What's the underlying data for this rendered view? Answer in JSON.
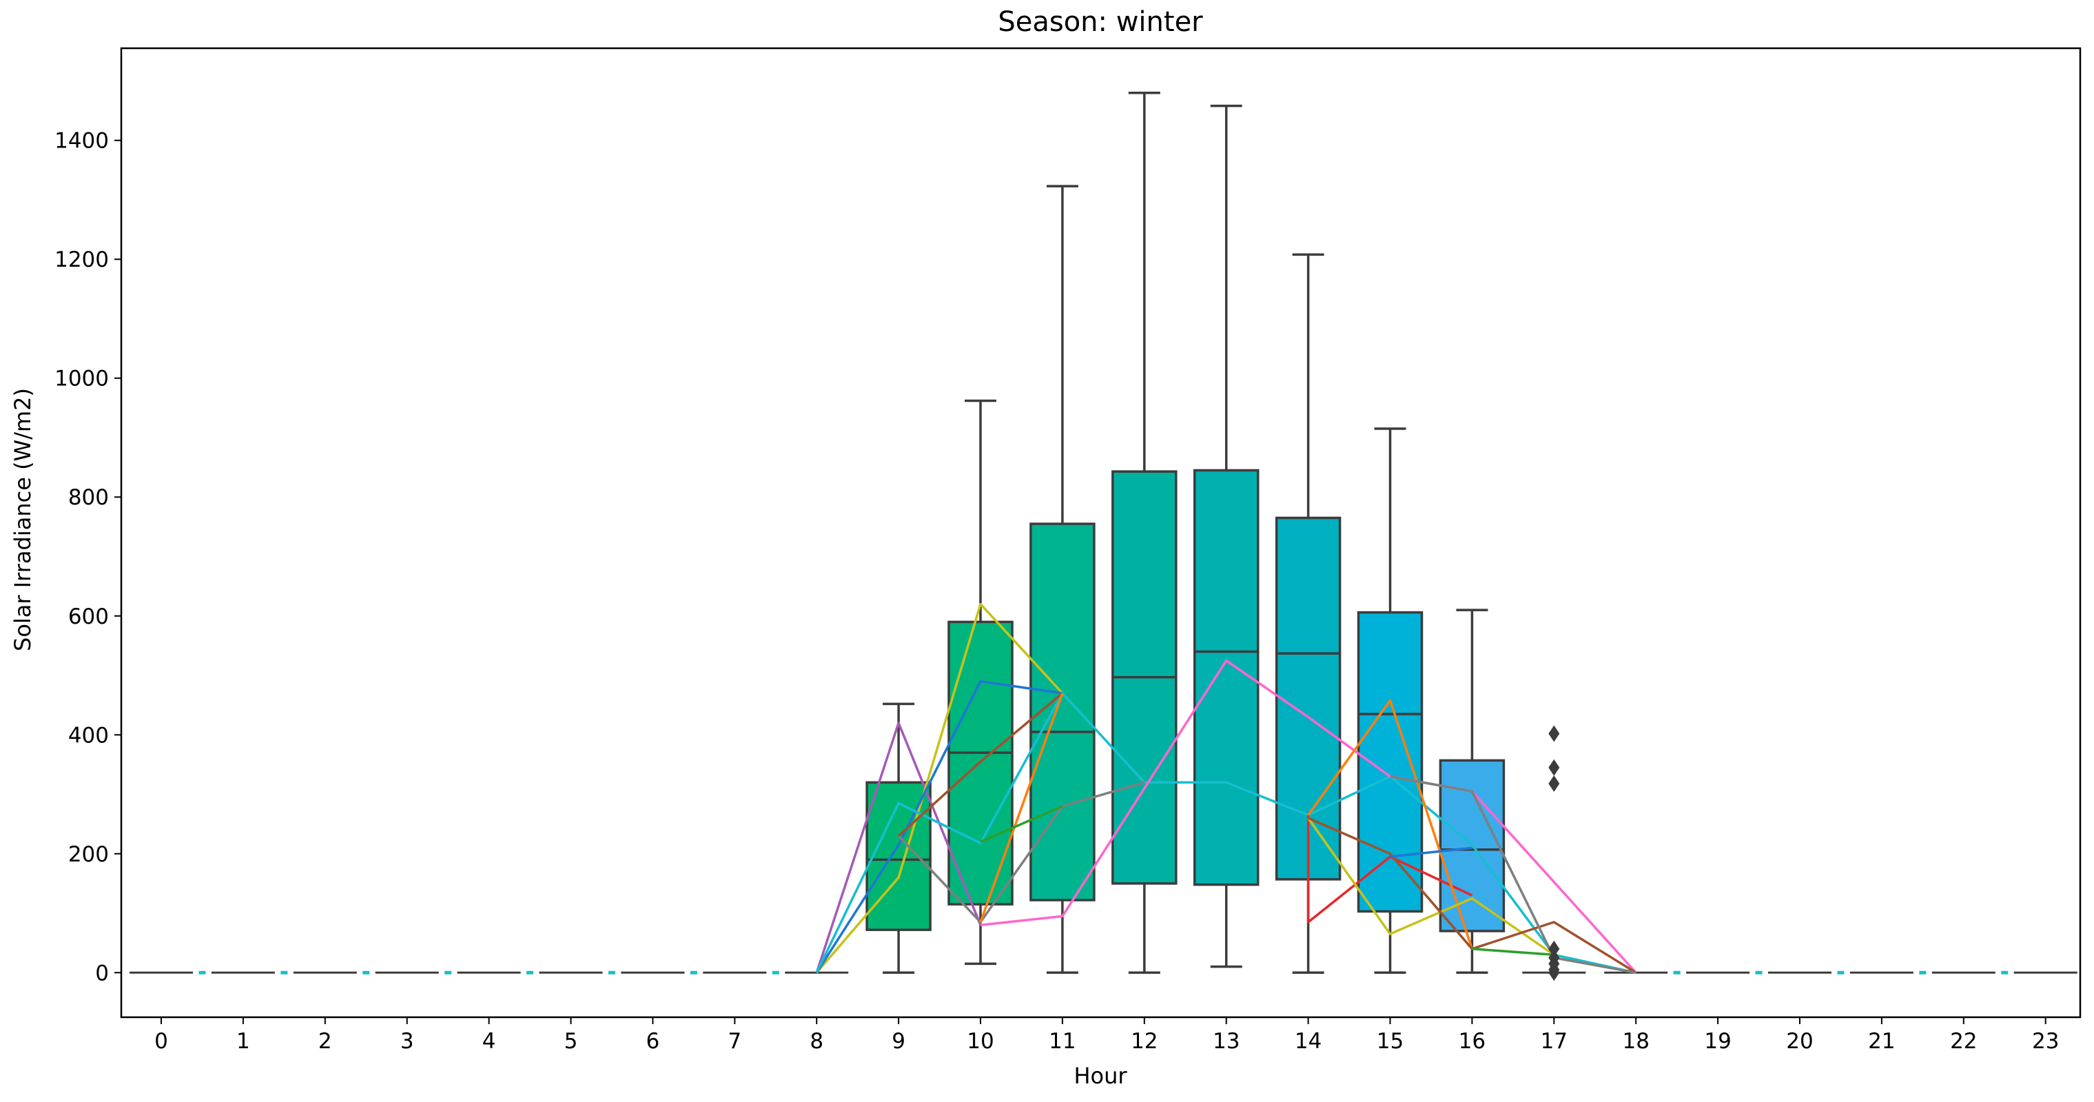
{
  "chart_data": {
    "type": "box",
    "title": "Season: winter",
    "xlabel": "Hour",
    "ylabel": "Solar Irradiance (W/m2)",
    "ylim": [
      -75,
      1555
    ],
    "yticks": [
      0,
      200,
      400,
      600,
      800,
      1000,
      1200,
      1400
    ],
    "ytick_labels": [
      "0",
      "200",
      "400",
      "600",
      "800",
      "1000",
      "1200",
      "1400"
    ],
    "categories": [
      "0",
      "1",
      "2",
      "3",
      "4",
      "5",
      "6",
      "7",
      "8",
      "9",
      "10",
      "11",
      "12",
      "13",
      "14",
      "15",
      "16",
      "17",
      "18",
      "19",
      "20",
      "21",
      "22",
      "23"
    ],
    "boxes": [
      {
        "hour": 9,
        "whislo": 0,
        "q1": 72,
        "med": 190,
        "q3": 320,
        "whishi": 452,
        "color": "#00b56f"
      },
      {
        "hour": 10,
        "whislo": 15,
        "q1": 115,
        "med": 370,
        "q3": 590,
        "whishi": 962,
        "color": "#00b57c"
      },
      {
        "hour": 11,
        "whislo": 0,
        "q1": 122,
        "med": 405,
        "q3": 755,
        "whishi": 1323,
        "color": "#00b48f"
      },
      {
        "hour": 12,
        "whislo": 0,
        "q1": 150,
        "med": 497,
        "q3": 843,
        "whishi": 1480,
        "color": "#00b1a2"
      },
      {
        "hour": 13,
        "whislo": 10,
        "q1": 148,
        "med": 540,
        "q3": 845,
        "whishi": 1458,
        "color": "#00b1b0"
      },
      {
        "hour": 14,
        "whislo": 0,
        "q1": 157,
        "med": 537,
        "q3": 765,
        "whishi": 1208,
        "color": "#00b0c0"
      },
      {
        "hour": 15,
        "whislo": 0,
        "q1": 103,
        "med": 435,
        "q3": 606,
        "whishi": 915,
        "color": "#00b1d8"
      },
      {
        "hour": 16,
        "whislo": 0,
        "q1": 70,
        "med": 207,
        "q3": 357,
        "whishi": 610,
        "color": "#3aacea"
      }
    ],
    "zero_hours": [
      0,
      1,
      2,
      3,
      4,
      5,
      6,
      7,
      8,
      17,
      18,
      19,
      20,
      21,
      22,
      23
    ],
    "outliers": [
      {
        "hour": 17,
        "values": [
          402,
          345,
          318,
          40,
          25,
          15,
          5,
          0
        ]
      }
    ],
    "series": [
      {
        "name": "day-purple",
        "color": "#a55ab8",
        "points": [
          [
            8,
            0
          ],
          [
            9,
            420
          ],
          [
            10,
            80
          ]
        ]
      },
      {
        "name": "day-yellow",
        "color": "#c8c11a",
        "points": [
          [
            8,
            0
          ],
          [
            9,
            160
          ],
          [
            10,
            620
          ],
          [
            11,
            470
          ]
        ]
      },
      {
        "name": "day-blue",
        "color": "#1f77d4",
        "points": [
          [
            8,
            0
          ],
          [
            9,
            215
          ],
          [
            10,
            490
          ],
          [
            11,
            470
          ]
        ]
      },
      {
        "name": "day-cyan",
        "color": "#17becf",
        "points": [
          [
            8,
            0
          ],
          [
            9,
            285
          ],
          [
            10,
            218
          ],
          [
            11,
            470
          ],
          [
            12,
            320
          ],
          [
            13,
            320
          ],
          [
            14,
            265
          ],
          [
            15,
            330
          ],
          [
            16,
            215
          ],
          [
            17,
            30
          ],
          [
            18,
            0
          ]
        ]
      },
      {
        "name": "day-gray",
        "color": "#7f7f7f",
        "points": [
          [
            9,
            230
          ],
          [
            10,
            85
          ],
          [
            11,
            280
          ],
          [
            12,
            320
          ]
        ]
      },
      {
        "name": "day-brown",
        "color": "#a0522d",
        "points": [
          [
            9,
            230
          ],
          [
            10,
            355
          ],
          [
            11,
            470
          ]
        ]
      },
      {
        "name": "day-orange",
        "color": "#ff7f0e",
        "points": [
          [
            10,
            85
          ],
          [
            11,
            470
          ]
        ]
      },
      {
        "name": "day-green",
        "color": "#2ca02c",
        "points": [
          [
            10,
            220
          ],
          [
            11,
            280
          ]
        ]
      },
      {
        "name": "day-pink",
        "color": "#ff66cc",
        "points": [
          [
            10,
            80
          ],
          [
            11,
            95
          ],
          [
            13,
            525
          ],
          [
            14,
            430
          ],
          [
            15,
            330
          ],
          [
            16,
            305
          ],
          [
            18,
            0
          ]
        ]
      },
      {
        "name": "day-red",
        "color": "#e8272a",
        "points": [
          [
            14,
            265
          ],
          [
            14,
            85
          ],
          [
            15,
            195
          ],
          [
            16,
            130
          ]
        ]
      },
      {
        "name": "day-orange-2",
        "color": "#ff7f0e",
        "points": [
          [
            14,
            265
          ],
          [
            15,
            458
          ],
          [
            16,
            40
          ]
        ]
      },
      {
        "name": "day-yellow-2",
        "color": "#c8c11a",
        "points": [
          [
            14,
            260
          ],
          [
            15,
            65
          ],
          [
            16,
            125
          ],
          [
            17,
            30
          ]
        ]
      },
      {
        "name": "day-brown-2",
        "color": "#a0522d",
        "points": [
          [
            14,
            260
          ],
          [
            15,
            200
          ],
          [
            16,
            40
          ],
          [
            17,
            85
          ],
          [
            18,
            0
          ]
        ]
      },
      {
        "name": "day-gray-2",
        "color": "#7f7f7f",
        "points": [
          [
            15,
            330
          ],
          [
            16,
            305
          ],
          [
            17,
            25
          ],
          [
            18,
            0
          ]
        ]
      },
      {
        "name": "day-blue-2",
        "color": "#1f77d4",
        "points": [
          [
            15,
            195
          ],
          [
            16,
            210
          ]
        ]
      },
      {
        "name": "day-green-2",
        "color": "#2ca02c",
        "points": [
          [
            16,
            40
          ],
          [
            17,
            30
          ]
        ]
      }
    ]
  }
}
